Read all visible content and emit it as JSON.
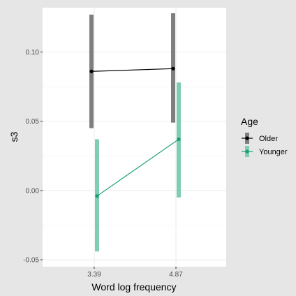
{
  "chart_data": {
    "type": "line",
    "title": "",
    "xlabel": "Word log frequency",
    "ylabel": "s3",
    "x": [
      "3.39",
      "4.87"
    ],
    "ylim": [
      -0.055,
      0.132
    ],
    "yticks": [
      -0.05,
      0.0,
      0.05,
      0.1
    ],
    "ytick_labels": [
      "-0.05",
      "0.00",
      "0.05",
      "0.10"
    ],
    "grid": true,
    "legend": {
      "title": "Age",
      "placement": "right"
    },
    "series": [
      {
        "name": "Older",
        "color": "#000000",
        "band_color": "#7f7f7f",
        "values": [
          0.086,
          0.088
        ],
        "lower": [
          0.045,
          0.049
        ],
        "upper": [
          0.127,
          0.128
        ]
      },
      {
        "name": "Younger",
        "color": "#1b9e77",
        "band_color": "#7fcdb3",
        "values": [
          -0.004,
          0.037
        ],
        "lower": [
          -0.044,
          -0.005
        ],
        "upper": [
          0.037,
          0.078
        ]
      }
    ]
  }
}
